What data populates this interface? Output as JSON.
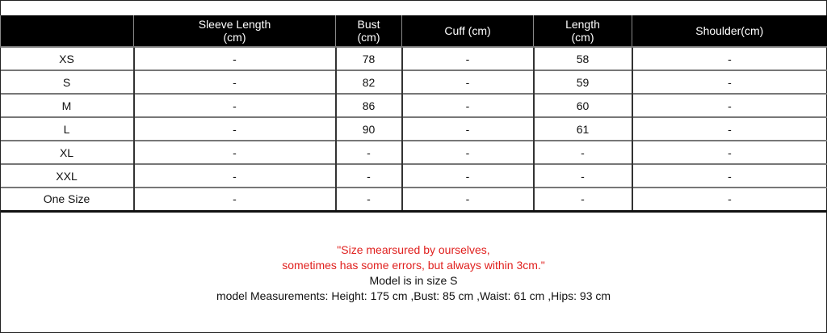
{
  "table": {
    "headers": [
      "",
      "Sleeve Length\n(cm)",
      "Bust\n(cm)",
      "Cuff (cm)",
      "Length\n(cm)",
      "Shoulder(cm)"
    ],
    "rows": [
      [
        "XS",
        "-",
        "78",
        "-",
        "58",
        "-"
      ],
      [
        "S",
        "-",
        "82",
        "-",
        "59",
        "-"
      ],
      [
        "M",
        "-",
        "86",
        "-",
        "60",
        "-"
      ],
      [
        "L",
        "-",
        "90",
        "-",
        "61",
        "-"
      ],
      [
        "XL",
        "-",
        "-",
        "-",
        "-",
        "-"
      ],
      [
        "XXL",
        "-",
        "-",
        "-",
        "-",
        "-"
      ],
      [
        "One Size",
        "-",
        "-",
        "-",
        "-",
        "-"
      ]
    ]
  },
  "notes": {
    "red_line1": "\"Size mearsured by ourselves,",
    "red_line2": "sometimes has some errors, but always within 3cm.\"",
    "model_size": "Model is in size S",
    "model_measurements": "model Measurements: Height: 175 cm ,Bust: 85 cm ,Waist: 61 cm ,Hips: 93 cm"
  },
  "colors": {
    "header_bg": "#000000",
    "note_red": "#e0201e"
  }
}
